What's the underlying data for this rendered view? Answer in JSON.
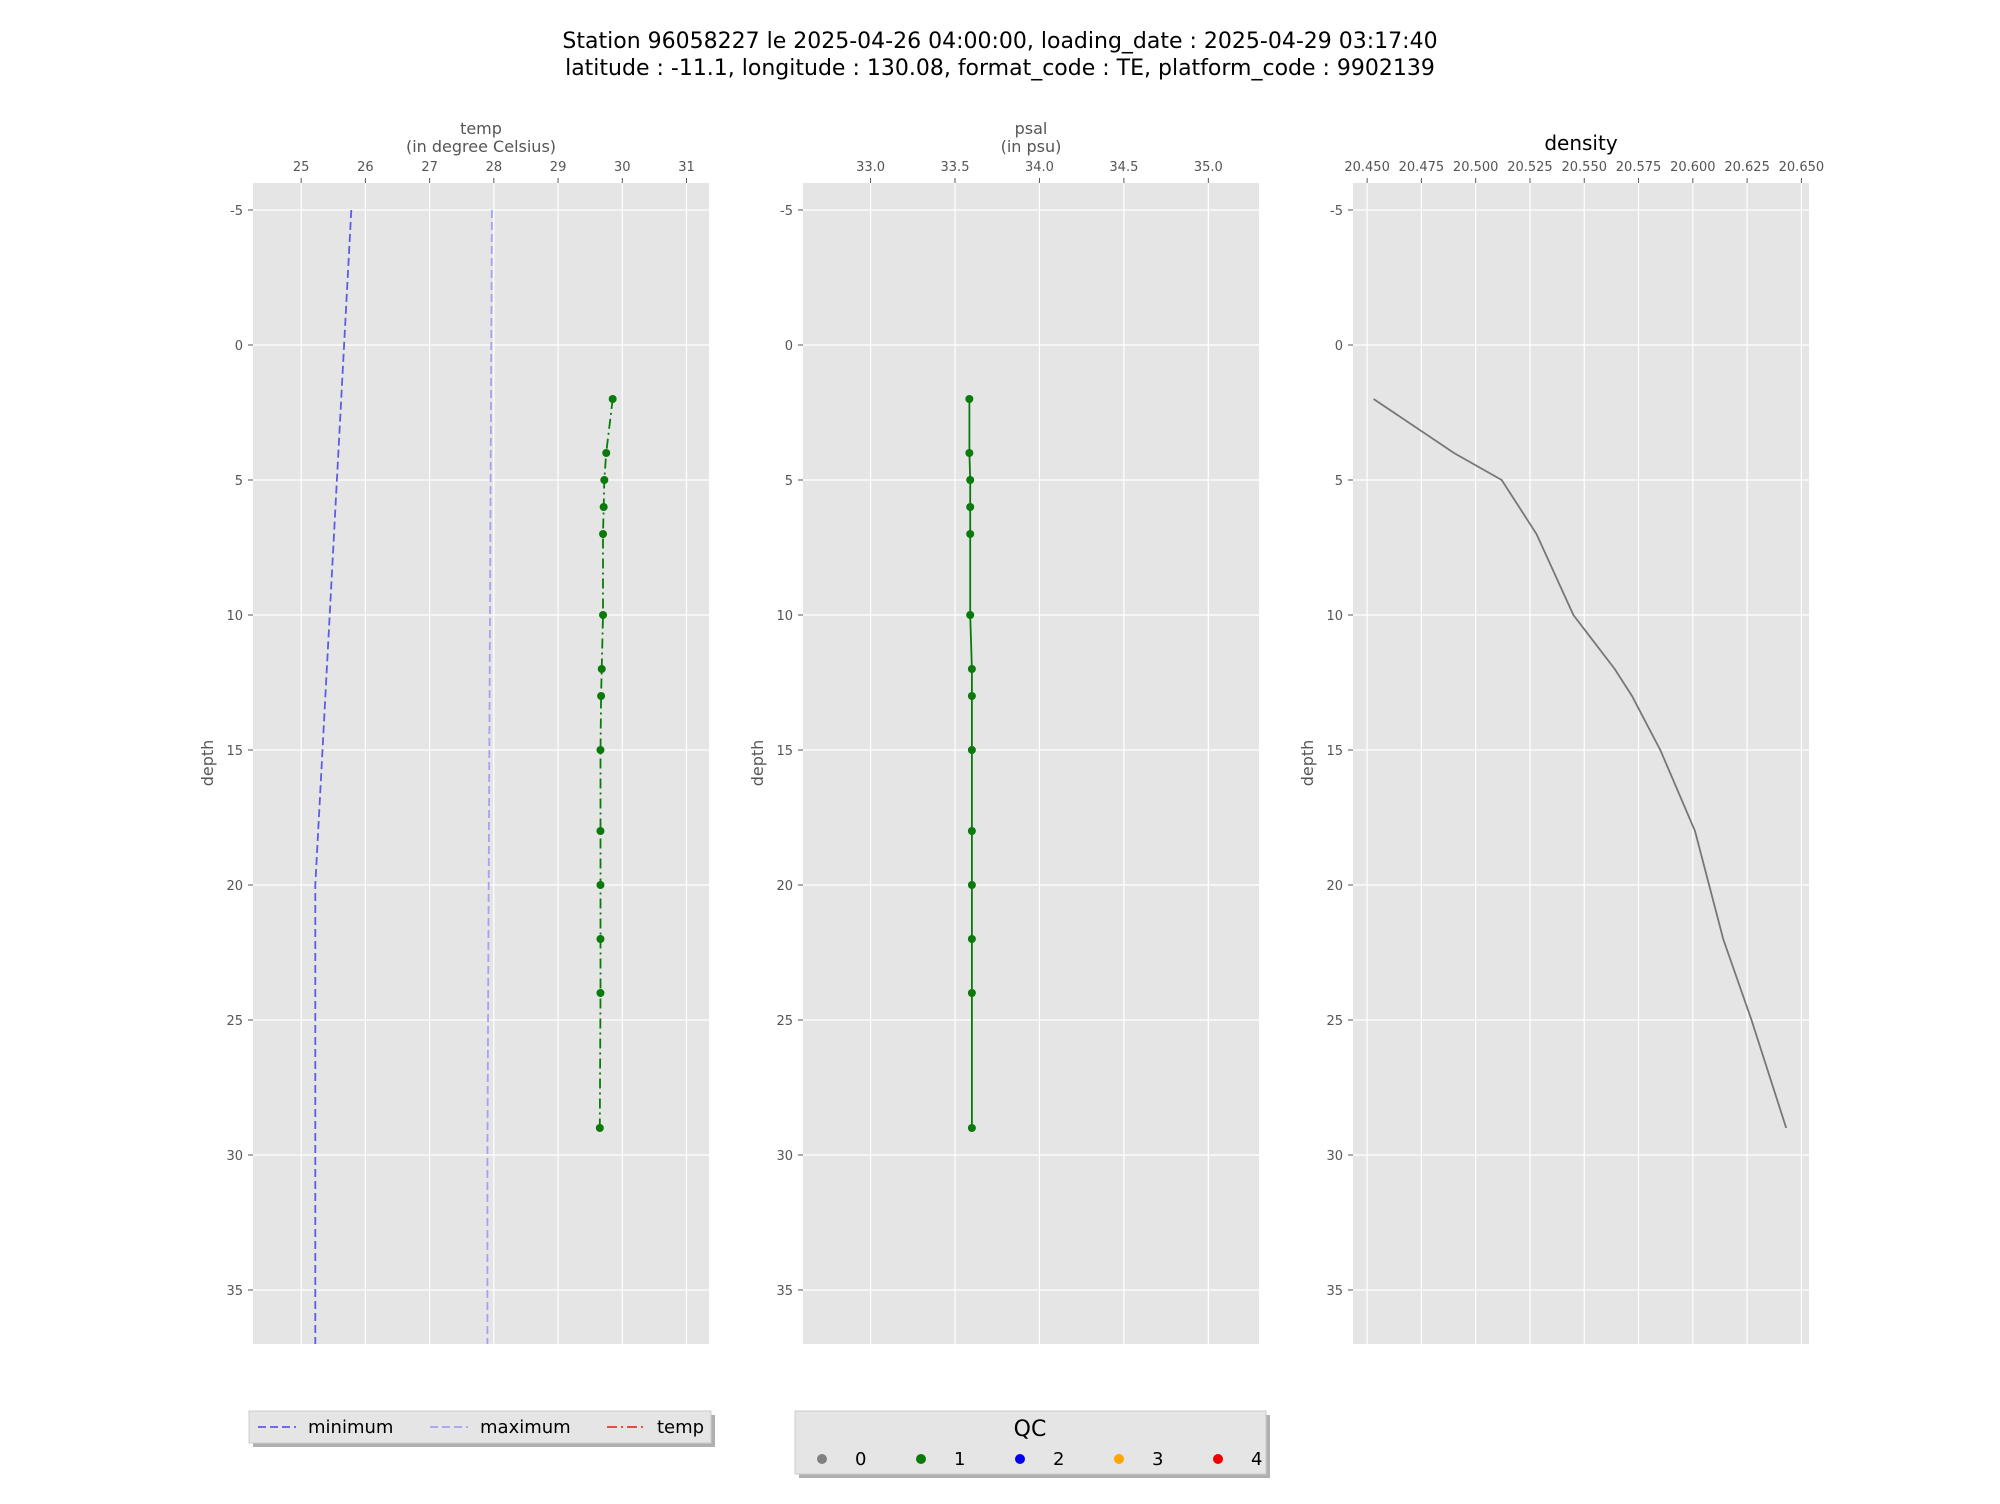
{
  "figure": {
    "title_line1": "Station 96058227 le 2025-04-26 04:00:00, loading_date : 2025-04-29 03:17:40",
    "title_line2": "latitude : -11.1, longitude : 130.08, format_code : TE, platform_code : 9902139"
  },
  "legend_lines": {
    "items": [
      {
        "label": "minimum",
        "color": "#5c5ce6",
        "dash": "dashed"
      },
      {
        "label": "maximum",
        "color": "#a3a3f0",
        "dash": "dashed"
      },
      {
        "label": "temp",
        "color": "#e23b2e",
        "dash": "dashdot"
      }
    ]
  },
  "legend_qc": {
    "title": "QC",
    "items": [
      {
        "label": "0",
        "color": "#808080"
      },
      {
        "label": "1",
        "color": "#0a7a0a"
      },
      {
        "label": "2",
        "color": "#0000ee"
      },
      {
        "label": "3",
        "color": "#ffa500"
      },
      {
        "label": "4",
        "color": "#ee0000"
      }
    ]
  },
  "chart_data": [
    {
      "type": "line",
      "xlabel_line1": "temp",
      "xlabel_line2": "(in degree Celsius)",
      "ylabel": "depth",
      "xlim": [
        24.25,
        31.35
      ],
      "ylim": [
        37,
        -6
      ],
      "x_ticks": [
        25,
        26,
        27,
        28,
        29,
        30,
        31
      ],
      "y_ticks": [
        -5,
        0,
        5,
        10,
        15,
        20,
        25,
        30,
        35
      ],
      "grid": true,
      "series": [
        {
          "name": "minimum",
          "color": "#5c5ce6",
          "style": "dashed",
          "x": [
            25.78,
            25.22,
            25.22
          ],
          "y": [
            -5,
            20,
            37
          ]
        },
        {
          "name": "maximum",
          "color": "#a3a3f0",
          "style": "dashed",
          "x": [
            27.97,
            27.9,
            27.9
          ],
          "y": [
            -5,
            30,
            37
          ]
        },
        {
          "name": "temp",
          "color": "#0a7a0a",
          "style": "dashdot",
          "markers": true,
          "x": [
            29.85,
            29.75,
            29.72,
            29.71,
            29.7,
            29.7,
            29.68,
            29.67,
            29.66,
            29.66,
            29.66,
            29.66,
            29.66,
            29.65
          ],
          "y": [
            2,
            4,
            5,
            6,
            7,
            10,
            12,
            13,
            15,
            18,
            20,
            22,
            24,
            29
          ]
        }
      ]
    },
    {
      "type": "line",
      "xlabel_line1": "psal",
      "xlabel_line2": "(in psu)",
      "ylabel": "depth",
      "xlim": [
        32.6,
        35.3
      ],
      "ylim": [
        37,
        -6
      ],
      "x_ticks": [
        "33.0",
        "33.5",
        "34.0",
        "34.5",
        "35.0"
      ],
      "y_ticks": [
        -5,
        0,
        5,
        10,
        15,
        20,
        25,
        30,
        35
      ],
      "grid": true,
      "series": [
        {
          "name": "psal",
          "color": "#0a7a0a",
          "style": "solid",
          "markers": true,
          "x": [
            33.585,
            33.585,
            33.59,
            33.59,
            33.59,
            33.59,
            33.6,
            33.6,
            33.6,
            33.6,
            33.6,
            33.6,
            33.6,
            33.6
          ],
          "y": [
            2,
            4,
            5,
            6,
            7,
            10,
            12,
            13,
            15,
            18,
            20,
            22,
            24,
            29
          ]
        }
      ]
    },
    {
      "type": "line",
      "title": "density",
      "ylabel": "depth",
      "xlim": [
        20.4435,
        20.6535
      ],
      "ylim": [
        37,
        -6
      ],
      "x_ticks": [
        "20.450",
        "20.475",
        "20.500",
        "20.525",
        "20.550",
        "20.575",
        "20.600",
        "20.625",
        "20.650"
      ],
      "y_ticks": [
        -5,
        0,
        5,
        10,
        15,
        20,
        25,
        30,
        35
      ],
      "grid": true,
      "series": [
        {
          "name": "density",
          "color": "#777777",
          "style": "solid",
          "markers": false,
          "x": [
            20.453,
            20.49,
            20.512,
            20.528,
            20.545,
            20.564,
            20.572,
            20.585,
            20.601,
            20.614,
            20.627,
            20.643
          ],
          "y": [
            2,
            4,
            5,
            7,
            10,
            12,
            13,
            15,
            18,
            22,
            25,
            29
          ]
        }
      ]
    }
  ]
}
